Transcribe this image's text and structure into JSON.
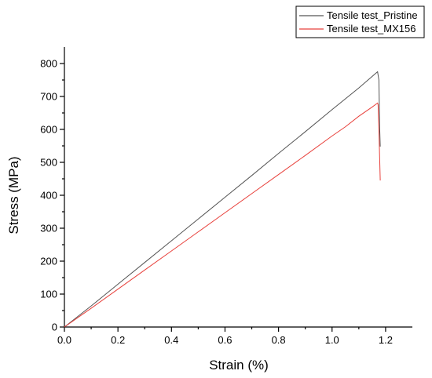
{
  "chart_data": {
    "type": "line",
    "title": "",
    "xlabel": "Strain (%)",
    "ylabel": "Stress (MPa)",
    "xlim": [
      0,
      1.3
    ],
    "ylim": [
      0,
      850
    ],
    "xticks": [
      "0.0",
      "0.2",
      "0.4",
      "0.6",
      "0.8",
      "1.0",
      "1.2"
    ],
    "yticks": [
      "0",
      "100",
      "200",
      "300",
      "400",
      "500",
      "600",
      "700",
      "800"
    ],
    "xtick_values": [
      0,
      0.2,
      0.4,
      0.6,
      0.8,
      1.0,
      1.2
    ],
    "ytick_values": [
      0,
      100,
      200,
      300,
      400,
      500,
      600,
      700,
      800
    ],
    "grid": false,
    "legend_position": "top-right",
    "series": [
      {
        "name": "Tensile test_Pristine",
        "color": "#555555",
        "x": [
          0,
          0.1,
          0.2,
          0.3,
          0.4,
          0.5,
          0.6,
          0.7,
          0.8,
          0.9,
          1.0,
          1.1,
          1.17,
          1.175,
          1.178,
          1.18
        ],
        "y": [
          0,
          64,
          130,
          196,
          262,
          328,
          394,
          460,
          527,
          593,
          660,
          726,
          775,
          750,
          600,
          548
        ]
      },
      {
        "name": "Tensile test_MX156",
        "color": "#e8413c",
        "x": [
          0,
          0.1,
          0.2,
          0.3,
          0.4,
          0.5,
          0.6,
          0.7,
          0.8,
          0.9,
          1.0,
          1.05,
          1.1,
          1.15,
          1.17,
          1.172,
          1.175,
          1.18
        ],
        "y": [
          0,
          57,
          115,
          173,
          231,
          289,
          347,
          405,
          463,
          521,
          580,
          608,
          640,
          668,
          680,
          675,
          600,
          445
        ]
      }
    ]
  }
}
